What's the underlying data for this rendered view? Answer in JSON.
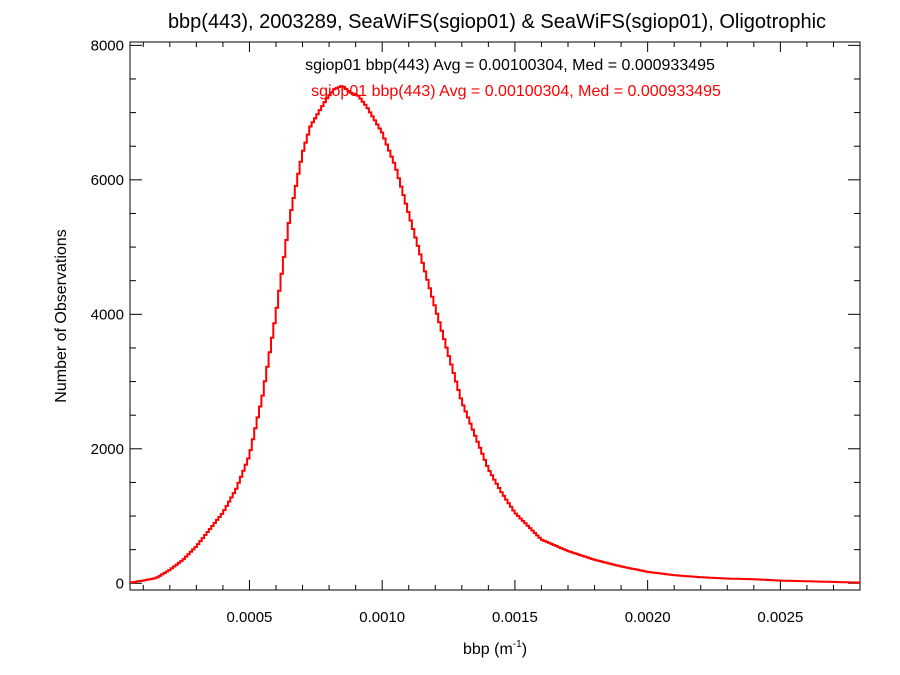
{
  "chart_data": {
    "type": "line",
    "title": "bbp(443), 2003289, SeaWiFS(sgiop01) & SeaWiFS(sgiop01), Oligotrophic",
    "xlabel": "bbp (m",
    "xlabel_sup": "-1",
    "xlabel_suffix": ")",
    "ylabel": "Number of Observations",
    "xlim": [
      5e-05,
      0.0028
    ],
    "ylim": [
      -100,
      8050
    ],
    "xticks": [
      0.0005,
      0.001,
      0.0015,
      0.002,
      0.0025
    ],
    "xtick_labels": [
      "0.0005",
      "0.0010",
      "0.0015",
      "0.0020",
      "0.0025"
    ],
    "yticks": [
      0,
      2000,
      4000,
      6000,
      8000
    ],
    "ytick_labels": [
      "0",
      "2000",
      "4000",
      "6000",
      "8000"
    ],
    "legend": [
      {
        "text": "sgiop01 bbp(443) Avg = 0.00100304, Med = 0.000933495",
        "color": "#000000"
      },
      {
        "text": "sgiop01 bbp(443) Avg = 0.00100304, Med = 0.000933495",
        "color": "#ff0000"
      }
    ],
    "series": [
      {
        "color": "#ff0000",
        "x": [
          5e-05,
          0.0001,
          0.00015,
          0.0002,
          0.00025,
          0.0003,
          0.00035,
          0.0004,
          0.00045,
          0.0005,
          0.00055,
          0.0006,
          0.00065,
          0.0007,
          0.00073,
          0.00076,
          0.00079,
          0.00082,
          0.00085,
          0.00088,
          0.00091,
          0.00094,
          0.00097,
          0.001,
          0.00105,
          0.0011,
          0.00115,
          0.0012,
          0.00125,
          0.0013,
          0.00135,
          0.0014,
          0.00145,
          0.0015,
          0.00155,
          0.0016,
          0.0017,
          0.0018,
          0.0019,
          0.002,
          0.0021,
          0.0022,
          0.0023,
          0.0024,
          0.0025,
          0.0026,
          0.0027,
          0.0028
        ],
        "y": [
          10,
          40,
          80,
          200,
          350,
          550,
          800,
          1050,
          1400,
          1900,
          2800,
          4000,
          5400,
          6400,
          6800,
          7000,
          7200,
          7350,
          7400,
          7300,
          7250,
          7100,
          6900,
          6700,
          6200,
          5500,
          4800,
          4100,
          3400,
          2700,
          2200,
          1700,
          1350,
          1050,
          850,
          650,
          480,
          350,
          250,
          170,
          120,
          90,
          70,
          60,
          40,
          30,
          20,
          10
        ]
      }
    ]
  }
}
